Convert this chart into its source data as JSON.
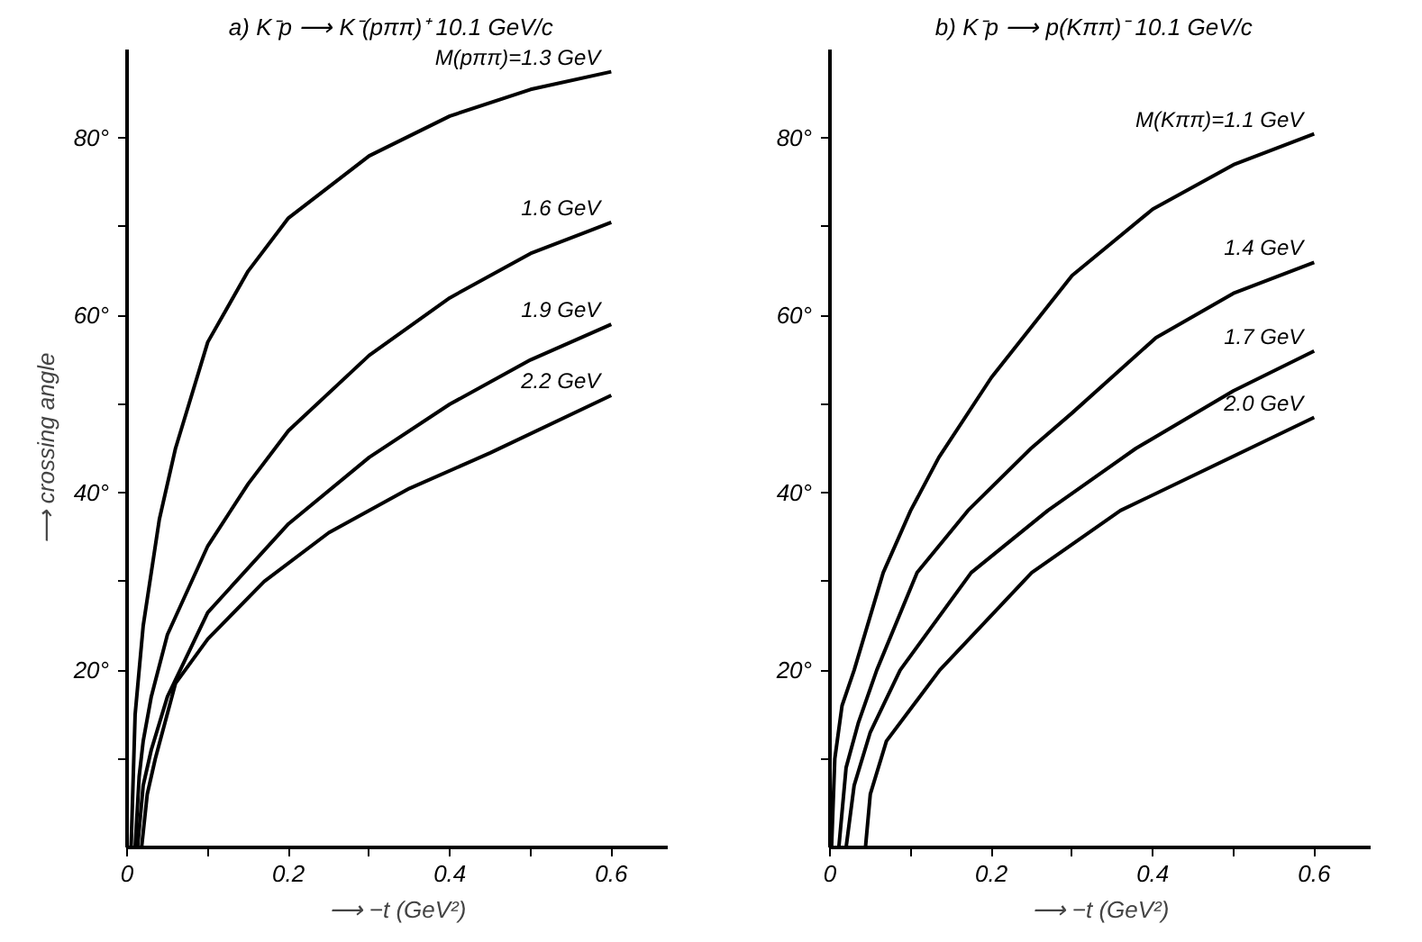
{
  "chart_data": [
    {
      "type": "line",
      "title": "a) K⁻p ⟶ K⁻(pππ)⁺   10.1 GeV/c",
      "xlabel": "⟶ −t (GeV²)",
      "ylabel": "⟶ crossing angle",
      "xlim": [
        0,
        0.67
      ],
      "ylim": [
        0,
        90
      ],
      "xticks": [
        0,
        {
          "value": 0.1,
          "label": null
        },
        0.2,
        {
          "value": 0.3,
          "label": null
        },
        0.4,
        {
          "value": 0.5,
          "label": null
        },
        0.6
      ],
      "yticks": [
        {
          "value": 10,
          "label": null
        },
        {
          "value": 20,
          "label": "20°"
        },
        {
          "value": 30,
          "label": null
        },
        {
          "value": 40,
          "label": "40°"
        },
        {
          "value": 50,
          "label": null
        },
        {
          "value": 60,
          "label": "60°"
        },
        {
          "value": 70,
          "label": null
        },
        {
          "value": 80,
          "label": "80°"
        }
      ],
      "grid": false,
      "marker": "none",
      "line_style": "solid",
      "series": [
        {
          "name": "M(pππ)=1.3 GeV",
          "color": "#000000",
          "x": [
            0.005,
            0.01,
            0.02,
            0.04,
            0.06,
            0.1,
            0.15,
            0.2,
            0.3,
            0.4,
            0.5,
            0.6
          ],
          "values": [
            0,
            15,
            25,
            37,
            45,
            57,
            65,
            71,
            78,
            82.5,
            85.5,
            87.5
          ]
        },
        {
          "name": "1.6 GeV",
          "color": "#000000",
          "x": [
            0.01,
            0.015,
            0.02,
            0.03,
            0.05,
            0.1,
            0.15,
            0.2,
            0.3,
            0.4,
            0.5,
            0.6
          ],
          "values": [
            0,
            8,
            12,
            17,
            24,
            34,
            41,
            47,
            55.5,
            62,
            67,
            70.5
          ]
        },
        {
          "name": "1.9 GeV",
          "color": "#000000",
          "x": [
            0.013,
            0.02,
            0.03,
            0.05,
            0.1,
            0.2,
            0.3,
            0.4,
            0.5,
            0.6
          ],
          "values": [
            0,
            7,
            11,
            17,
            26.5,
            36.5,
            44,
            50,
            55,
            59
          ]
        },
        {
          "name": "2.2 GeV",
          "color": "#000000",
          "x": [
            0.018,
            0.025,
            0.035,
            0.06,
            0.1,
            0.17,
            0.25,
            0.35,
            0.45,
            0.6
          ],
          "values": [
            0,
            6,
            10,
            18.5,
            23.5,
            30,
            35.5,
            40.5,
            44.5,
            51
          ]
        }
      ]
    },
    {
      "type": "line",
      "title": "b) K⁻p ⟶ p(Kππ)⁻   10.1 GeV/c",
      "xlabel": "⟶ −t (GeV²)",
      "xlim": [
        0,
        0.67
      ],
      "ylim": [
        0,
        90
      ],
      "xticks": [
        0,
        {
          "value": 0.1,
          "label": null
        },
        0.2,
        {
          "value": 0.3,
          "label": null
        },
        0.4,
        {
          "value": 0.5,
          "label": null
        },
        0.6
      ],
      "yticks": [
        {
          "value": 10,
          "label": null
        },
        {
          "value": 20,
          "label": "20°"
        },
        {
          "value": 30,
          "label": null
        },
        {
          "value": 40,
          "label": "40°"
        },
        {
          "value": 50,
          "label": null
        },
        {
          "value": 60,
          "label": "60°"
        },
        {
          "value": 70,
          "label": null
        },
        {
          "value": 80,
          "label": "80°"
        }
      ],
      "grid": false,
      "marker": "none",
      "line_style": "solid",
      "series": [
        {
          "name": "M(Kππ)=1.1 GeV",
          "color": "#000000",
          "x": [
            0.002,
            0.006,
            0.015,
            0.03,
            0.066,
            0.1,
            0.135,
            0.2,
            0.3,
            0.4,
            0.5,
            0.6
          ],
          "values": [
            0,
            10,
            16,
            20,
            31,
            38,
            44,
            53,
            64.5,
            72,
            77,
            80.5
          ]
        },
        {
          "name": "1.4 GeV",
          "color": "#000000",
          "x": [
            0.011,
            0.02,
            0.035,
            0.058,
            0.108,
            0.171,
            0.249,
            0.3,
            0.404,
            0.5,
            0.6
          ],
          "values": [
            0,
            9,
            14,
            20,
            31,
            38,
            45,
            49,
            57.5,
            62.5,
            66
          ]
        },
        {
          "name": "1.7 GeV",
          "color": "#000000",
          "x": [
            0.02,
            0.03,
            0.05,
            0.087,
            0.175,
            0.27,
            0.379,
            0.5,
            0.6
          ],
          "values": [
            0,
            7,
            13,
            20,
            31,
            38,
            45,
            51.5,
            56
          ]
        },
        {
          "name": "2.0 GeV",
          "color": "#000000",
          "x": [
            0.044,
            0.05,
            0.07,
            0.136,
            0.25,
            0.36,
            0.52,
            0.6
          ],
          "values": [
            0,
            6,
            12,
            20,
            31,
            38,
            45,
            48.5
          ]
        }
      ]
    }
  ]
}
